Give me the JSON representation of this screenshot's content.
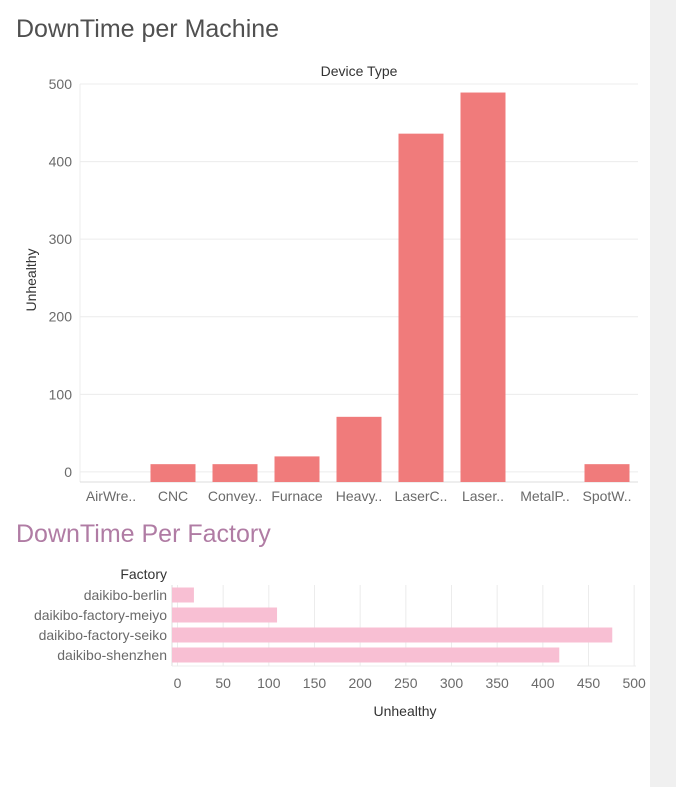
{
  "page": {
    "title_machine": "DownTime per Machine",
    "title_factory": "DownTime Per Factory"
  },
  "colors": {
    "machine_bar": "#f07b7b",
    "factory_bar": "#f8bfd3",
    "title_machine": "#505050",
    "title_factory": "#b07ca4",
    "gridline": "#ececec"
  },
  "chart_data": [
    {
      "type": "bar",
      "orientation": "vertical",
      "column_header": "Device Type",
      "ylabel": "Unhealthy",
      "categories": [
        "AirWre..",
        "CNC",
        "Convey..",
        "Furnace",
        "Heavy..",
        "LaserC..",
        "Laser..",
        "MetalP..",
        "SpotW.."
      ],
      "values": [
        0,
        10,
        10,
        20,
        71,
        436,
        489,
        0,
        10
      ],
      "ylim": [
        -13,
        500
      ],
      "yticks": [
        0,
        100,
        200,
        300,
        400,
        500
      ],
      "grid": true
    },
    {
      "type": "bar",
      "orientation": "horizontal",
      "row_header": "Factory",
      "xlabel": "Unhealthy",
      "categories": [
        "daikibo-berlin",
        "daikibo-factory-meiyo",
        "daikibo-factory-seiko",
        "daikibo-shenzhen"
      ],
      "values": [
        18,
        109,
        476,
        418
      ],
      "xlim": [
        -6,
        502
      ],
      "xticks": [
        0,
        50,
        100,
        150,
        200,
        250,
        300,
        350,
        400,
        450,
        500
      ],
      "grid": true
    }
  ]
}
